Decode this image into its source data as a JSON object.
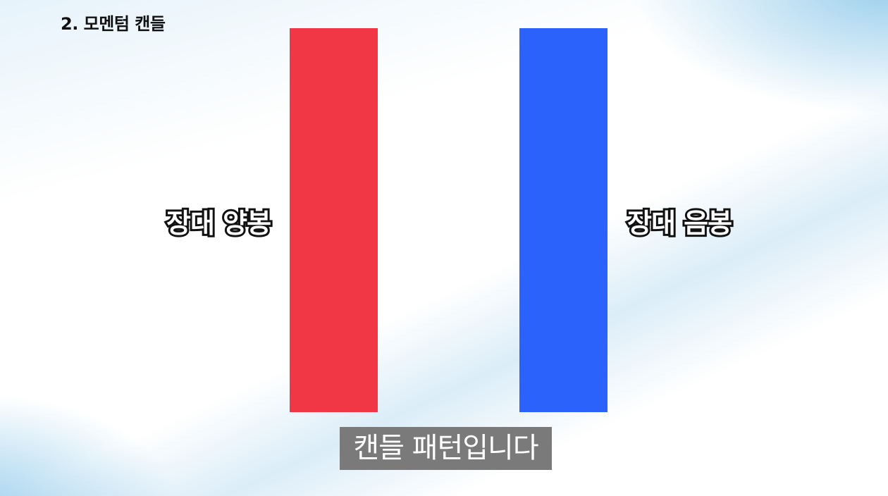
{
  "title": "2. 모멘텀 캔들",
  "candles": [
    {
      "label": "장대 양봉",
      "color": "#f13746"
    },
    {
      "label": "장대 음봉",
      "color": "#2b62fb"
    }
  ],
  "caption": "캔들 패턴입니다"
}
